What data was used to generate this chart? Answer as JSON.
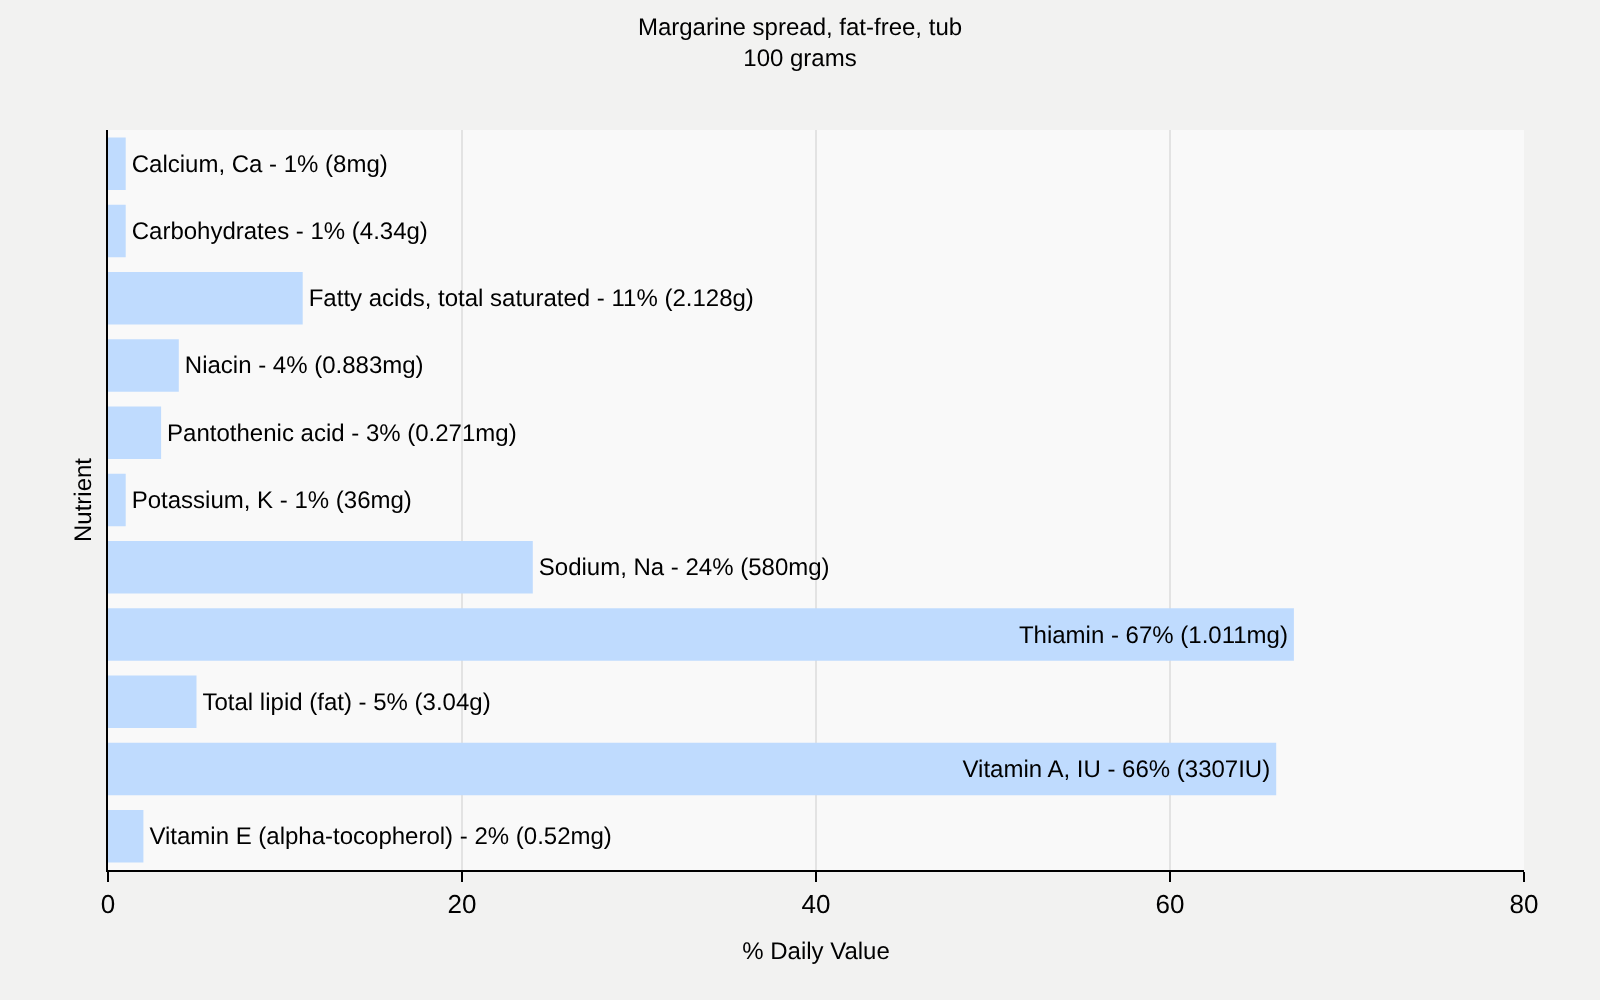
{
  "chart_data": {
    "type": "bar",
    "orientation": "horizontal",
    "title": "Margarine spread, fat-free, tub",
    "subtitle": "100 grams",
    "xlabel": "% Daily Value",
    "ylabel": "Nutrient",
    "categories": [
      "Calcium, Ca - 1% (8mg)",
      "Carbohydrates - 1% (4.34g)",
      "Fatty acids, total saturated - 11% (2.128g)",
      "Niacin - 4% (0.883mg)",
      "Pantothenic acid - 3% (0.271mg)",
      "Potassium, K - 1% (36mg)",
      "Sodium, Na - 24% (580mg)",
      "Thiamin - 67% (1.011mg)",
      "Total lipid (fat) - 5% (3.04g)",
      "Vitamin A, IU - 66% (3307IU)",
      "Vitamin E (alpha-tocopherol) - 2% (0.52mg)"
    ],
    "values": [
      1,
      1,
      11,
      4,
      3,
      1,
      24,
      67,
      5,
      66,
      2
    ],
    "color": "#bfdbfe",
    "xlim": [
      0,
      80
    ],
    "xticks": [
      0,
      20,
      40,
      60,
      80
    ],
    "grid": "x",
    "tick_labels": "x"
  }
}
